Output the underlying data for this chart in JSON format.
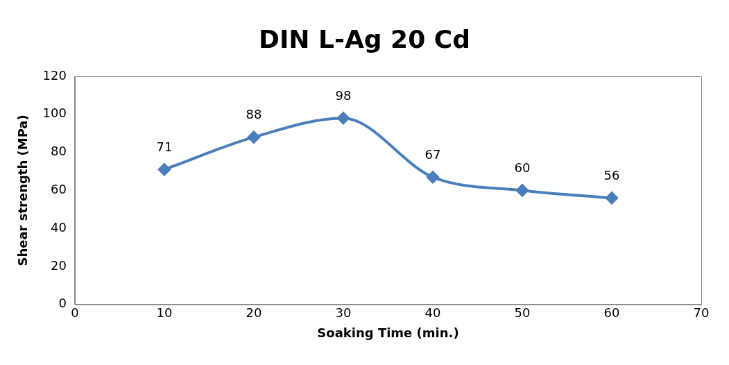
{
  "chart_data": {
    "type": "line",
    "title": "DIN L-Ag 20 Cd",
    "xlabel": "Soaking Time (min.)",
    "ylabel": "Shear strength (MPa)",
    "x": [
      10,
      20,
      30,
      40,
      50,
      60
    ],
    "series": [
      {
        "color": "#4a7ebb",
        "values": [
          71,
          88,
          98,
          67,
          60,
          56
        ]
      }
    ],
    "xlim": [
      0,
      70
    ],
    "xticks": [
      0,
      10,
      20,
      30,
      40,
      50,
      60,
      70
    ],
    "ylim": [
      0,
      120
    ],
    "yticks": [
      0,
      20,
      40,
      60,
      80,
      100,
      120
    ],
    "grid": false,
    "legend": false,
    "marker": "diamond",
    "line_style": "solid",
    "data_labels": true
  }
}
